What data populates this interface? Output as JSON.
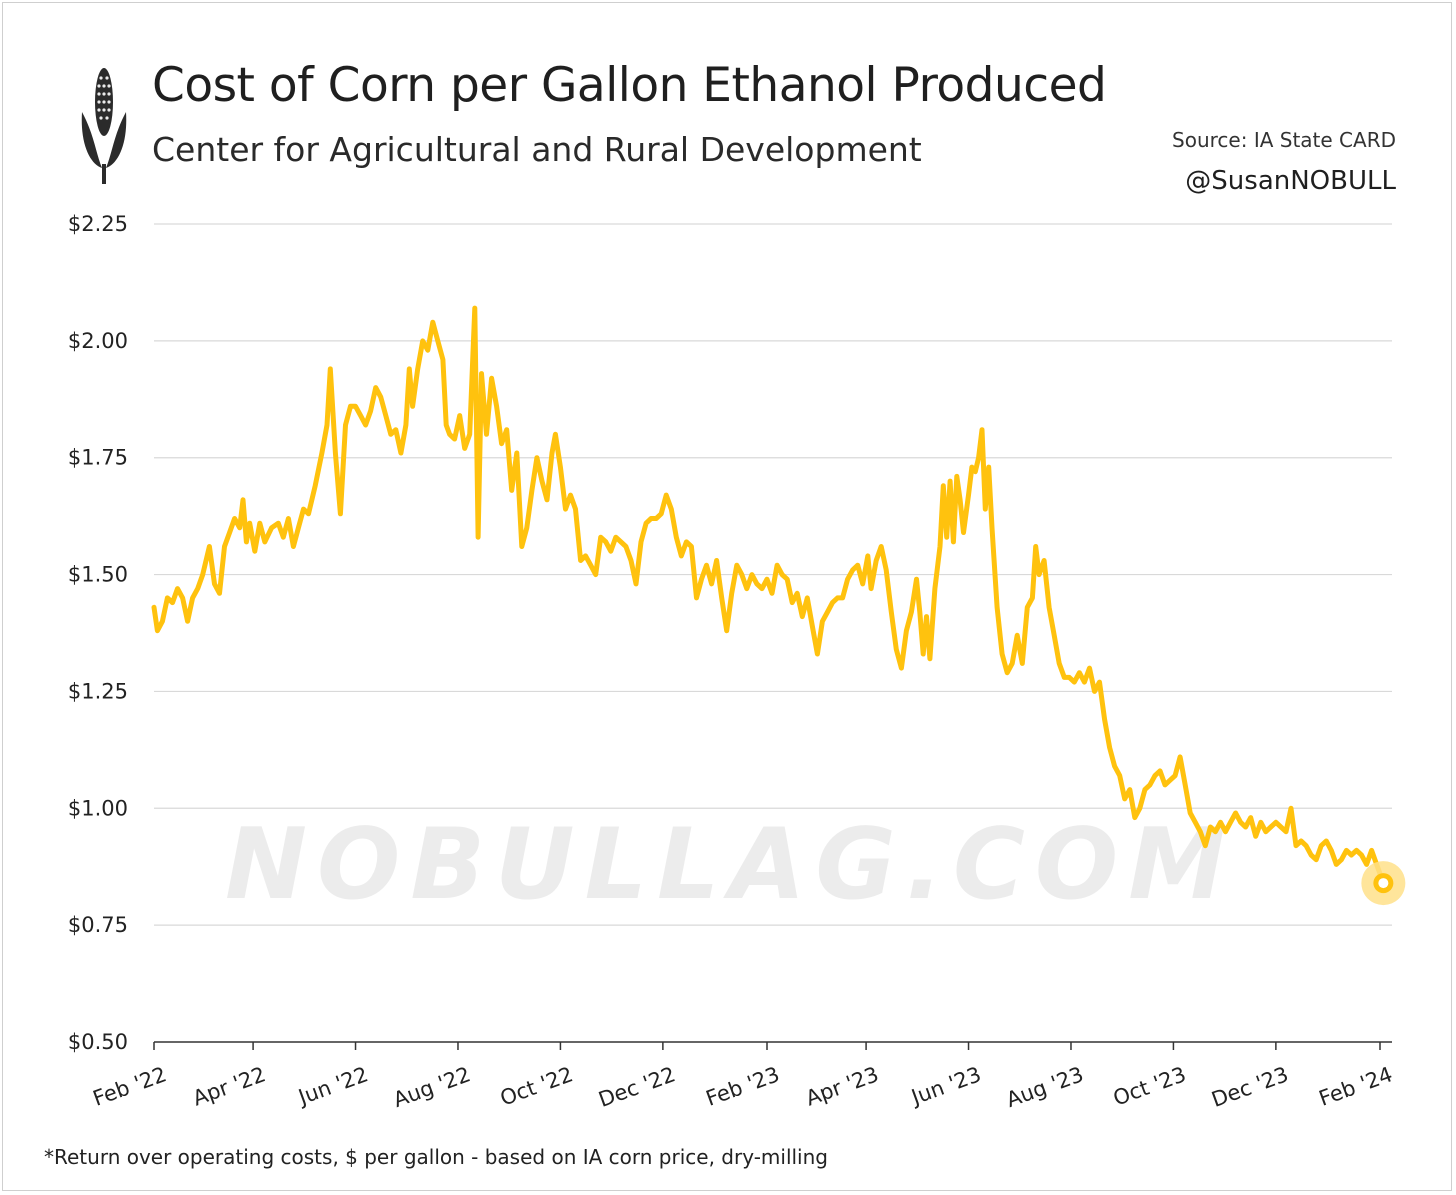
{
  "header": {
    "title": "Cost of Corn per Gallon Ethanol Produced",
    "subtitle": "Center for Agricultural and Rural Development",
    "source": "Source: IA State CARD",
    "handle": "@SusanNOBULL",
    "logo_icon": "corn-icon"
  },
  "watermark": "NOBULLAG.COM",
  "footnote": "*Return over operating costs, $ per gallon - based on IA corn price, dry-milling",
  "colors": {
    "line": "#FFC20E",
    "grid": "#d9d9d9",
    "endpoint_halo": "#FFE08A"
  },
  "chart_data": {
    "type": "line",
    "title": "Cost of Corn per Gallon Ethanol Produced",
    "subtitle": "Center for Agricultural and Rural Development",
    "ylim": [
      0.5,
      2.25
    ],
    "yticks": [
      0.5,
      0.75,
      1.0,
      1.25,
      1.5,
      1.75,
      2.0,
      2.25
    ],
    "ytick_labels": [
      "$0.50",
      "$0.75",
      "$1.00",
      "$1.25",
      "$1.50",
      "$1.75",
      "$2.00",
      "$2.25"
    ],
    "xtick_labels": [
      "Feb '22",
      "Apr '22",
      "Jun '22",
      "Aug '22",
      "Oct '22",
      "Dec '22",
      "Feb '23",
      "Apr '23",
      "Jun '23",
      "Aug '23",
      "Oct '23",
      "Dec '23",
      "Feb '24"
    ],
    "xtick_dates": [
      "2022-02-01",
      "2022-04-01",
      "2022-06-01",
      "2022-08-01",
      "2022-10-01",
      "2022-12-01",
      "2023-02-01",
      "2023-04-01",
      "2023-06-01",
      "2023-08-01",
      "2023-10-01",
      "2023-12-01",
      "2024-02-01"
    ],
    "grid": true,
    "series": [
      {
        "values": [
          [
            "2022-02-01",
            1.43
          ],
          [
            "2022-02-03",
            1.38
          ],
          [
            "2022-02-06",
            1.4
          ],
          [
            "2022-02-09",
            1.45
          ],
          [
            "2022-02-12",
            1.44
          ],
          [
            "2022-02-15",
            1.47
          ],
          [
            "2022-02-18",
            1.45
          ],
          [
            "2022-02-21",
            1.4
          ],
          [
            "2022-02-24",
            1.45
          ],
          [
            "2022-02-27",
            1.47
          ],
          [
            "2022-03-02",
            1.5
          ],
          [
            "2022-03-06",
            1.56
          ],
          [
            "2022-03-09",
            1.48
          ],
          [
            "2022-03-12",
            1.46
          ],
          [
            "2022-03-15",
            1.56
          ],
          [
            "2022-03-18",
            1.59
          ],
          [
            "2022-03-21",
            1.62
          ],
          [
            "2022-03-24",
            1.6
          ],
          [
            "2022-03-26",
            1.66
          ],
          [
            "2022-03-28",
            1.57
          ],
          [
            "2022-03-30",
            1.61
          ],
          [
            "2022-04-02",
            1.55
          ],
          [
            "2022-04-05",
            1.61
          ],
          [
            "2022-04-08",
            1.57
          ],
          [
            "2022-04-12",
            1.6
          ],
          [
            "2022-04-16",
            1.61
          ],
          [
            "2022-04-19",
            1.58
          ],
          [
            "2022-04-22",
            1.62
          ],
          [
            "2022-04-25",
            1.56
          ],
          [
            "2022-04-28",
            1.6
          ],
          [
            "2022-05-01",
            1.64
          ],
          [
            "2022-05-04",
            1.63
          ],
          [
            "2022-05-08",
            1.69
          ],
          [
            "2022-05-12",
            1.76
          ],
          [
            "2022-05-15",
            1.82
          ],
          [
            "2022-05-17",
            1.94
          ],
          [
            "2022-05-20",
            1.76
          ],
          [
            "2022-05-23",
            1.63
          ],
          [
            "2022-05-26",
            1.82
          ],
          [
            "2022-05-29",
            1.86
          ],
          [
            "2022-06-01",
            1.86
          ],
          [
            "2022-06-04",
            1.84
          ],
          [
            "2022-06-07",
            1.82
          ],
          [
            "2022-06-10",
            1.85
          ],
          [
            "2022-06-13",
            1.9
          ],
          [
            "2022-06-16",
            1.88
          ],
          [
            "2022-06-19",
            1.84
          ],
          [
            "2022-06-22",
            1.8
          ],
          [
            "2022-06-25",
            1.81
          ],
          [
            "2022-06-28",
            1.76
          ],
          [
            "2022-07-01",
            1.82
          ],
          [
            "2022-07-03",
            1.94
          ],
          [
            "2022-07-05",
            1.86
          ],
          [
            "2022-07-08",
            1.94
          ],
          [
            "2022-07-11",
            2.0
          ],
          [
            "2022-07-14",
            1.98
          ],
          [
            "2022-07-17",
            2.04
          ],
          [
            "2022-07-20",
            2.0
          ],
          [
            "2022-07-23",
            1.96
          ],
          [
            "2022-07-25",
            1.82
          ],
          [
            "2022-07-27",
            1.8
          ],
          [
            "2022-07-30",
            1.79
          ],
          [
            "2022-08-02",
            1.84
          ],
          [
            "2022-08-05",
            1.77
          ],
          [
            "2022-08-08",
            1.8
          ],
          [
            "2022-08-11",
            2.07
          ],
          [
            "2022-08-13",
            1.58
          ],
          [
            "2022-08-15",
            1.93
          ],
          [
            "2022-08-18",
            1.8
          ],
          [
            "2022-08-21",
            1.92
          ],
          [
            "2022-08-24",
            1.86
          ],
          [
            "2022-08-27",
            1.78
          ],
          [
            "2022-08-30",
            1.81
          ],
          [
            "2022-09-02",
            1.68
          ],
          [
            "2022-09-05",
            1.76
          ],
          [
            "2022-09-08",
            1.56
          ],
          [
            "2022-09-11",
            1.6
          ],
          [
            "2022-09-14",
            1.68
          ],
          [
            "2022-09-17",
            1.75
          ],
          [
            "2022-09-20",
            1.7
          ],
          [
            "2022-09-23",
            1.66
          ],
          [
            "2022-09-26",
            1.76
          ],
          [
            "2022-09-28",
            1.8
          ],
          [
            "2022-10-01",
            1.73
          ],
          [
            "2022-10-04",
            1.64
          ],
          [
            "2022-10-07",
            1.67
          ],
          [
            "2022-10-10",
            1.64
          ],
          [
            "2022-10-13",
            1.53
          ],
          [
            "2022-10-16",
            1.54
          ],
          [
            "2022-10-19",
            1.52
          ],
          [
            "2022-10-22",
            1.5
          ],
          [
            "2022-10-25",
            1.58
          ],
          [
            "2022-10-28",
            1.57
          ],
          [
            "2022-10-31",
            1.55
          ],
          [
            "2022-11-03",
            1.58
          ],
          [
            "2022-11-06",
            1.57
          ],
          [
            "2022-11-09",
            1.56
          ],
          [
            "2022-11-12",
            1.53
          ],
          [
            "2022-11-15",
            1.48
          ],
          [
            "2022-11-18",
            1.57
          ],
          [
            "2022-11-21",
            1.61
          ],
          [
            "2022-11-24",
            1.62
          ],
          [
            "2022-11-27",
            1.62
          ],
          [
            "2022-11-30",
            1.63
          ],
          [
            "2022-12-03",
            1.67
          ],
          [
            "2022-12-06",
            1.64
          ],
          [
            "2022-12-09",
            1.58
          ],
          [
            "2022-12-12",
            1.54
          ],
          [
            "2022-12-15",
            1.57
          ],
          [
            "2022-12-18",
            1.56
          ],
          [
            "2022-12-21",
            1.45
          ],
          [
            "2022-12-24",
            1.49
          ],
          [
            "2022-12-27",
            1.52
          ],
          [
            "2022-12-30",
            1.48
          ],
          [
            "2023-01-02",
            1.53
          ],
          [
            "2023-01-05",
            1.45
          ],
          [
            "2023-01-08",
            1.38
          ],
          [
            "2023-01-11",
            1.46
          ],
          [
            "2023-01-14",
            1.52
          ],
          [
            "2023-01-17",
            1.5
          ],
          [
            "2023-01-20",
            1.47
          ],
          [
            "2023-01-23",
            1.5
          ],
          [
            "2023-01-26",
            1.48
          ],
          [
            "2023-01-29",
            1.47
          ],
          [
            "2023-02-01",
            1.49
          ],
          [
            "2023-02-04",
            1.46
          ],
          [
            "2023-02-07",
            1.52
          ],
          [
            "2023-02-10",
            1.5
          ],
          [
            "2023-02-13",
            1.49
          ],
          [
            "2023-02-16",
            1.44
          ],
          [
            "2023-02-19",
            1.46
          ],
          [
            "2023-02-22",
            1.41
          ],
          [
            "2023-02-25",
            1.45
          ],
          [
            "2023-02-28",
            1.39
          ],
          [
            "2023-03-03",
            1.33
          ],
          [
            "2023-03-06",
            1.4
          ],
          [
            "2023-03-09",
            1.42
          ],
          [
            "2023-03-12",
            1.44
          ],
          [
            "2023-03-15",
            1.45
          ],
          [
            "2023-03-18",
            1.45
          ],
          [
            "2023-03-21",
            1.49
          ],
          [
            "2023-03-24",
            1.51
          ],
          [
            "2023-03-27",
            1.52
          ],
          [
            "2023-03-30",
            1.48
          ],
          [
            "2023-04-02",
            1.54
          ],
          [
            "2023-04-04",
            1.47
          ],
          [
            "2023-04-07",
            1.53
          ],
          [
            "2023-04-10",
            1.56
          ],
          [
            "2023-04-13",
            1.51
          ],
          [
            "2023-04-16",
            1.42
          ],
          [
            "2023-04-19",
            1.34
          ],
          [
            "2023-04-22",
            1.3
          ],
          [
            "2023-04-25",
            1.38
          ],
          [
            "2023-04-28",
            1.42
          ],
          [
            "2023-05-01",
            1.49
          ],
          [
            "2023-05-03",
            1.42
          ],
          [
            "2023-05-05",
            1.33
          ],
          [
            "2023-05-07",
            1.41
          ],
          [
            "2023-05-09",
            1.32
          ],
          [
            "2023-05-12",
            1.47
          ],
          [
            "2023-05-15",
            1.56
          ],
          [
            "2023-05-17",
            1.69
          ],
          [
            "2023-05-19",
            1.58
          ],
          [
            "2023-05-21",
            1.7
          ],
          [
            "2023-05-23",
            1.57
          ],
          [
            "2023-05-25",
            1.71
          ],
          [
            "2023-05-27",
            1.66
          ],
          [
            "2023-05-29",
            1.59
          ],
          [
            "2023-06-01",
            1.67
          ],
          [
            "2023-06-03",
            1.73
          ],
          [
            "2023-06-05",
            1.72
          ],
          [
            "2023-06-07",
            1.75
          ],
          [
            "2023-06-09",
            1.81
          ],
          [
            "2023-06-11",
            1.64
          ],
          [
            "2023-06-13",
            1.73
          ],
          [
            "2023-06-15",
            1.6
          ],
          [
            "2023-06-18",
            1.43
          ],
          [
            "2023-06-21",
            1.33
          ],
          [
            "2023-06-24",
            1.29
          ],
          [
            "2023-06-27",
            1.31
          ],
          [
            "2023-06-30",
            1.37
          ],
          [
            "2023-07-03",
            1.31
          ],
          [
            "2023-07-06",
            1.43
          ],
          [
            "2023-07-09",
            1.45
          ],
          [
            "2023-07-11",
            1.56
          ],
          [
            "2023-07-13",
            1.5
          ],
          [
            "2023-07-16",
            1.53
          ],
          [
            "2023-07-19",
            1.43
          ],
          [
            "2023-07-22",
            1.37
          ],
          [
            "2023-07-25",
            1.31
          ],
          [
            "2023-07-28",
            1.28
          ],
          [
            "2023-07-31",
            1.28
          ],
          [
            "2023-08-03",
            1.27
          ],
          [
            "2023-08-06",
            1.29
          ],
          [
            "2023-08-09",
            1.27
          ],
          [
            "2023-08-12",
            1.3
          ],
          [
            "2023-08-15",
            1.25
          ],
          [
            "2023-08-18",
            1.27
          ],
          [
            "2023-08-21",
            1.19
          ],
          [
            "2023-08-24",
            1.13
          ],
          [
            "2023-08-27",
            1.09
          ],
          [
            "2023-08-30",
            1.07
          ],
          [
            "2023-09-02",
            1.02
          ],
          [
            "2023-09-05",
            1.04
          ],
          [
            "2023-09-08",
            0.98
          ],
          [
            "2023-09-11",
            1.0
          ],
          [
            "2023-09-14",
            1.04
          ],
          [
            "2023-09-17",
            1.05
          ],
          [
            "2023-09-20",
            1.07
          ],
          [
            "2023-09-23",
            1.08
          ],
          [
            "2023-09-26",
            1.05
          ],
          [
            "2023-09-29",
            1.06
          ],
          [
            "2023-10-02",
            1.07
          ],
          [
            "2023-10-05",
            1.11
          ],
          [
            "2023-10-08",
            1.05
          ],
          [
            "2023-10-11",
            0.99
          ],
          [
            "2023-10-14",
            0.97
          ],
          [
            "2023-10-17",
            0.95
          ],
          [
            "2023-10-20",
            0.92
          ],
          [
            "2023-10-23",
            0.96
          ],
          [
            "2023-10-26",
            0.95
          ],
          [
            "2023-10-29",
            0.97
          ],
          [
            "2023-11-01",
            0.95
          ],
          [
            "2023-11-04",
            0.97
          ],
          [
            "2023-11-07",
            0.99
          ],
          [
            "2023-11-10",
            0.97
          ],
          [
            "2023-11-13",
            0.96
          ],
          [
            "2023-11-16",
            0.98
          ],
          [
            "2023-11-19",
            0.94
          ],
          [
            "2023-11-22",
            0.97
          ],
          [
            "2023-11-25",
            0.95
          ],
          [
            "2023-11-28",
            0.96
          ],
          [
            "2023-12-01",
            0.97
          ],
          [
            "2023-12-04",
            0.96
          ],
          [
            "2023-12-07",
            0.95
          ],
          [
            "2023-12-10",
            1.0
          ],
          [
            "2023-12-13",
            0.92
          ],
          [
            "2023-12-16",
            0.93
          ],
          [
            "2023-12-19",
            0.92
          ],
          [
            "2023-12-22",
            0.9
          ],
          [
            "2023-12-25",
            0.89
          ],
          [
            "2023-12-28",
            0.92
          ],
          [
            "2023-12-31",
            0.93
          ],
          [
            "2024-01-03",
            0.91
          ],
          [
            "2024-01-06",
            0.88
          ],
          [
            "2024-01-09",
            0.89
          ],
          [
            "2024-01-12",
            0.91
          ],
          [
            "2024-01-15",
            0.9
          ],
          [
            "2024-01-18",
            0.91
          ],
          [
            "2024-01-21",
            0.9
          ],
          [
            "2024-01-24",
            0.88
          ],
          [
            "2024-01-27",
            0.91
          ],
          [
            "2024-01-30",
            0.88
          ],
          [
            "2024-02-03",
            0.84
          ]
        ]
      }
    ],
    "last_point_highlighted": true
  }
}
